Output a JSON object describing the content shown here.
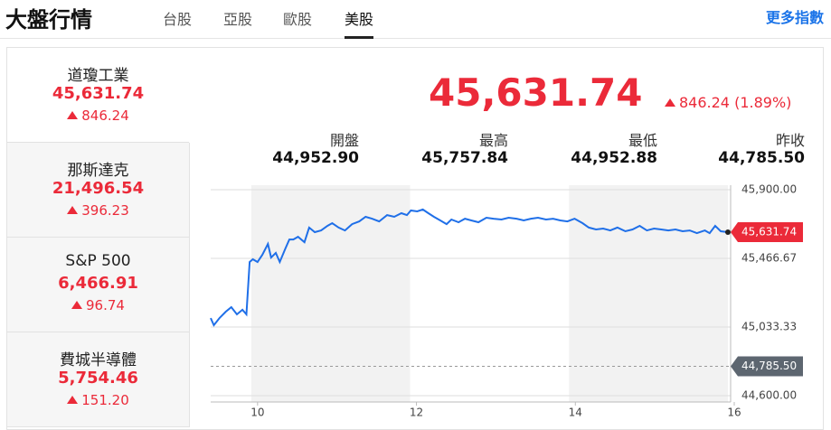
{
  "header": {
    "title": "大盤行情",
    "tabs": [
      "台股",
      "亞股",
      "歐股",
      "美股"
    ],
    "active_tab_index": 3,
    "more_link": "更多指數"
  },
  "indices": [
    {
      "name": "道瓊工業",
      "value": "45,631.74",
      "change": "846.24"
    },
    {
      "name": "那斯達克",
      "value": "21,496.54",
      "change": "396.23"
    },
    {
      "name": "S&P 500",
      "value": "6,466.91",
      "change": "96.74"
    },
    {
      "name": "費城半導體",
      "value": "5,754.46",
      "change": "151.20"
    }
  ],
  "selected_index": 0,
  "quote": {
    "price": "45,631.74",
    "change": "846.24 (1.89%)",
    "stats": [
      {
        "label": "開盤",
        "value": "44,952.90"
      },
      {
        "label": "最高",
        "value": "45,757.84"
      },
      {
        "label": "最低",
        "value": "44,952.88"
      },
      {
        "label": "昨收",
        "value": "44,785.50"
      }
    ]
  },
  "chart_data": {
    "type": "line",
    "x": [
      9.41,
      9.45,
      9.52,
      9.6,
      9.67,
      9.74,
      9.81,
      9.86,
      9.9,
      9.94,
      10,
      10.06,
      10.13,
      10.17,
      10.23,
      10.28,
      10.35,
      10.4,
      10.45,
      10.51,
      10.59,
      10.65,
      10.72,
      10.8,
      10.88,
      10.94,
      11.02,
      11.1,
      11.19,
      11.28,
      11.36,
      11.44,
      11.53,
      11.63,
      11.72,
      11.81,
      11.88,
      11.93,
      12.01,
      12.08,
      12.15,
      12.22,
      12.3,
      12.38,
      12.44,
      12.53,
      12.61,
      12.69,
      12.78,
      12.88,
      12.97,
      13.07,
      13.16,
      13.26,
      13.35,
      13.44,
      13.53,
      13.63,
      13.72,
      13.81,
      13.9,
      13.99,
      14.09,
      14.17,
      14.26,
      14.35,
      14.44,
      14.53,
      14.63,
      14.72,
      14.81,
      14.9,
      14.99,
      15.08,
      15.17,
      15.26,
      15.35,
      15.44,
      15.53,
      15.63,
      15.69,
      15.76,
      15.83,
      15.92
    ],
    "series": [
      {
        "name": "道瓊工業",
        "color": "#1f6fe8",
        "values": [
          45090,
          45045,
          45090,
          45130,
          45159,
          45113,
          45142,
          45113,
          45444,
          45461,
          45444,
          45489,
          45558,
          45472,
          45501,
          45444,
          45529,
          45586,
          45586,
          45603,
          45569,
          45661,
          45632,
          45643,
          45672,
          45689,
          45661,
          45643,
          45683,
          45700,
          45729,
          45717,
          45700,
          45740,
          45729,
          45752,
          45740,
          45769,
          45763,
          45775,
          45752,
          45729,
          45706,
          45683,
          45712,
          45695,
          45717,
          45706,
          45695,
          45723,
          45717,
          45712,
          45723,
          45717,
          45706,
          45717,
          45723,
          45712,
          45717,
          45706,
          45700,
          45717,
          45689,
          45661,
          45649,
          45655,
          45643,
          45661,
          45638,
          45649,
          45672,
          45643,
          45655,
          45649,
          45643,
          45649,
          45638,
          45643,
          45626,
          45643,
          45626,
          45672,
          45638,
          45631.74
        ]
      }
    ],
    "xlim": [
      9.41,
      16
    ],
    "xticks": [
      10,
      12,
      14,
      16
    ],
    "ylim": [
      44600,
      45900
    ],
    "yticks": [
      {
        "value": 44600,
        "label": "44,600.00"
      },
      {
        "value": 45033.33,
        "label": "45,033.33"
      },
      {
        "value": 45466.67,
        "label": "45,466.67"
      },
      {
        "value": 45900,
        "label": "45,900.00"
      }
    ],
    "reference_line": 44785.5,
    "grid": true
  }
}
